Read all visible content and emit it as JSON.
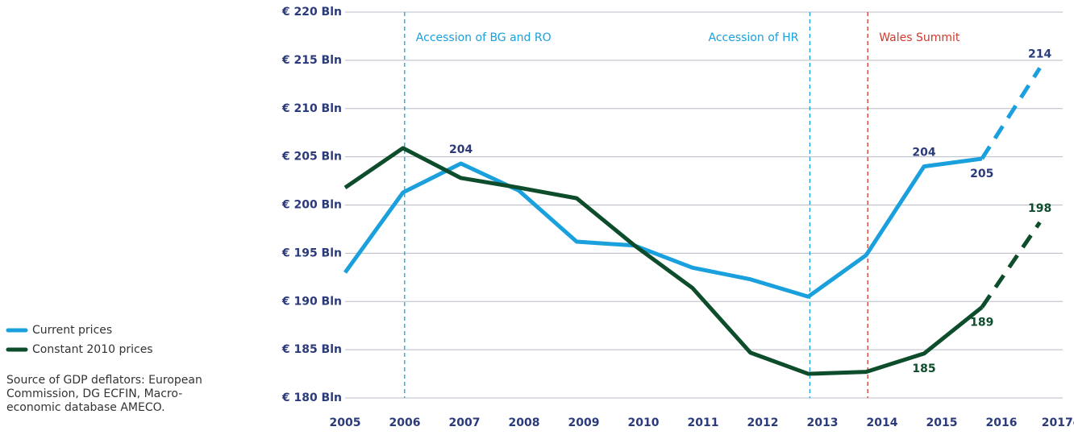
{
  "chart_data": {
    "type": "line",
    "categories": [
      "2005",
      "2006",
      "2007",
      "2008",
      "2009",
      "2010",
      "2011",
      "2012",
      "2013",
      "2014",
      "2015",
      "2016",
      "2017e"
    ],
    "series": [
      {
        "name": "Current prices",
        "color": "#1aa0dc",
        "label_color": "#2b3a7a",
        "values": [
          193.0,
          201.3,
          204.3,
          201.5,
          196.2,
          195.8,
          193.5,
          192.3,
          190.5,
          194.8,
          204.0,
          204.8,
          214.2
        ],
        "value_labels": [
          null,
          null,
          "204",
          null,
          null,
          null,
          null,
          null,
          null,
          null,
          "204",
          "205",
          "214"
        ]
      },
      {
        "name": "Constant 2010 prices",
        "color": "#0d4d2b",
        "label_color": "#0d4d2b",
        "values": [
          201.8,
          205.9,
          202.8,
          201.8,
          200.7,
          195.8,
          191.4,
          184.7,
          182.5,
          182.7,
          184.6,
          189.4,
          198.2
        ],
        "value_labels": [
          null,
          null,
          null,
          null,
          null,
          null,
          null,
          null,
          null,
          null,
          "185",
          "189",
          "198"
        ]
      }
    ],
    "dashed_from_index": 11,
    "ylim": [
      180,
      220
    ],
    "yticks": [
      {
        "value": 180,
        "label": "€ 180 Bln"
      },
      {
        "value": 185,
        "label": "€ 185 Bln"
      },
      {
        "value": 190,
        "label": "€ 190 Bln"
      },
      {
        "value": 195,
        "label": "€ 195 Bln"
      },
      {
        "value": 200,
        "label": "€ 200 Bln"
      },
      {
        "value": 205,
        "label": "€ 205 Bln"
      },
      {
        "value": 210,
        "label": "€ 210 Bln"
      },
      {
        "value": 215,
        "label": "€ 215 Bln"
      },
      {
        "value": 220,
        "label": "€ 220 Bln"
      }
    ],
    "grid": true,
    "annotations": [
      {
        "x": "2006",
        "text": "Accession of BG and RO",
        "color": "#1aa0dc",
        "align": "right"
      },
      {
        "x": "2013",
        "text": "Accession of HR",
        "color": "#1aa0dc",
        "align": "left"
      },
      {
        "x": "2014",
        "text": "Wales Summit",
        "color": "#d0392b",
        "align": "right"
      }
    ],
    "legend": "left",
    "source": "Source of GDP deflators: European Commission, DG ECFIN, Macro-economic database AMECO."
  }
}
